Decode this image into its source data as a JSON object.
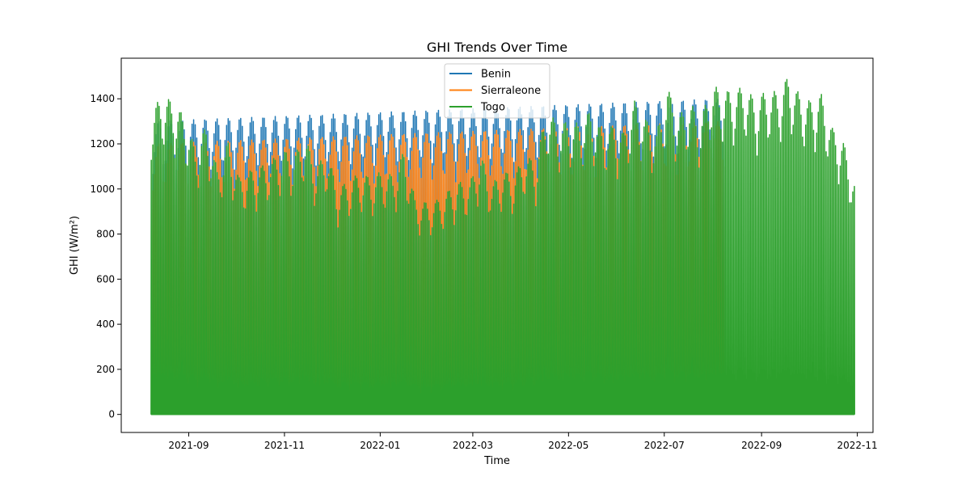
{
  "chart_data": {
    "type": "line",
    "title": "GHI Trends Over Time",
    "xlabel": "Time",
    "ylabel": "GHI (W/m²)",
    "x_ticks": [
      "2021-09",
      "2021-11",
      "2022-01",
      "2022-03",
      "2022-05",
      "2022-07",
      "2022-09",
      "2022-11"
    ],
    "y_ticks": [
      0,
      200,
      400,
      600,
      800,
      1000,
      1200,
      1400
    ],
    "xlim": [
      "2021-07-20",
      "2022-11-11"
    ],
    "ylim": [
      -80,
      1580
    ],
    "grid": false,
    "legend_placement": "upper center",
    "series": [
      {
        "name": "Benin",
        "color": "#1f77b4",
        "x": [
          "2021-08-09",
          "2022-08-08"
        ],
        "daily_peak": [
          1300,
          1400
        ]
      },
      {
        "name": "Sierraleone",
        "color": "#ff7f0e",
        "x": [
          "2021-08-09",
          "2022-08-08"
        ],
        "daily_peak": [
          1200,
          1300
        ]
      },
      {
        "name": "Togo",
        "color": "#2ca02c",
        "x": [
          "2021-08-08",
          "2021-08-15",
          "2021-08-22",
          "2021-08-29",
          "2021-09-05",
          "2021-09-12",
          "2021-09-19",
          "2021-09-26",
          "2021-10-03",
          "2021-10-10",
          "2021-10-17",
          "2021-10-24",
          "2021-10-31",
          "2021-11-07",
          "2021-11-14",
          "2021-11-21",
          "2021-11-28",
          "2021-12-05",
          "2021-12-12",
          "2021-12-19",
          "2021-12-26",
          "2022-01-02",
          "2022-01-09",
          "2022-01-16",
          "2022-01-23",
          "2022-01-30",
          "2022-02-06",
          "2022-02-13",
          "2022-02-20",
          "2022-02-27",
          "2022-03-06",
          "2022-03-13",
          "2022-03-20",
          "2022-03-27",
          "2022-04-03",
          "2022-04-10",
          "2022-04-17",
          "2022-04-24",
          "2022-05-01",
          "2022-05-08",
          "2022-05-15",
          "2022-05-22",
          "2022-05-29",
          "2022-06-05",
          "2022-06-12",
          "2022-06-19",
          "2022-06-26",
          "2022-07-03",
          "2022-07-10",
          "2022-07-17",
          "2022-07-24",
          "2022-07-31",
          "2022-08-07",
          "2022-08-14",
          "2022-08-21",
          "2022-08-28",
          "2022-09-04",
          "2022-09-11",
          "2022-09-18",
          "2022-09-25",
          "2022-10-02",
          "2022-10-09",
          "2022-10-16",
          "2022-10-23",
          "2022-10-30"
        ],
        "daily_peak": [
          1350,
          1410,
          1390,
          1320,
          1180,
          1280,
          1090,
          1210,
          1050,
          1080,
          1100,
          1130,
          1170,
          1150,
          1230,
          1100,
          1160,
          1000,
          1040,
          1070,
          1050,
          1080,
          1060,
          1170,
          960,
          940,
          950,
          990,
          1030,
          1030,
          1150,
          1020,
          1080,
          1060,
          1150,
          1120,
          1350,
          1290,
          1300,
          1290,
          1350,
          1260,
          1280,
          1250,
          1390,
          1310,
          1250,
          1450,
          1320,
          1390,
          1310,
          1460,
          1440,
          1430,
          1460,
          1390,
          1440,
          1430,
          1500,
          1420,
          1390,
          1420,
          1270,
          1210,
          1030
        ],
        "daily_min": 0
      }
    ]
  }
}
